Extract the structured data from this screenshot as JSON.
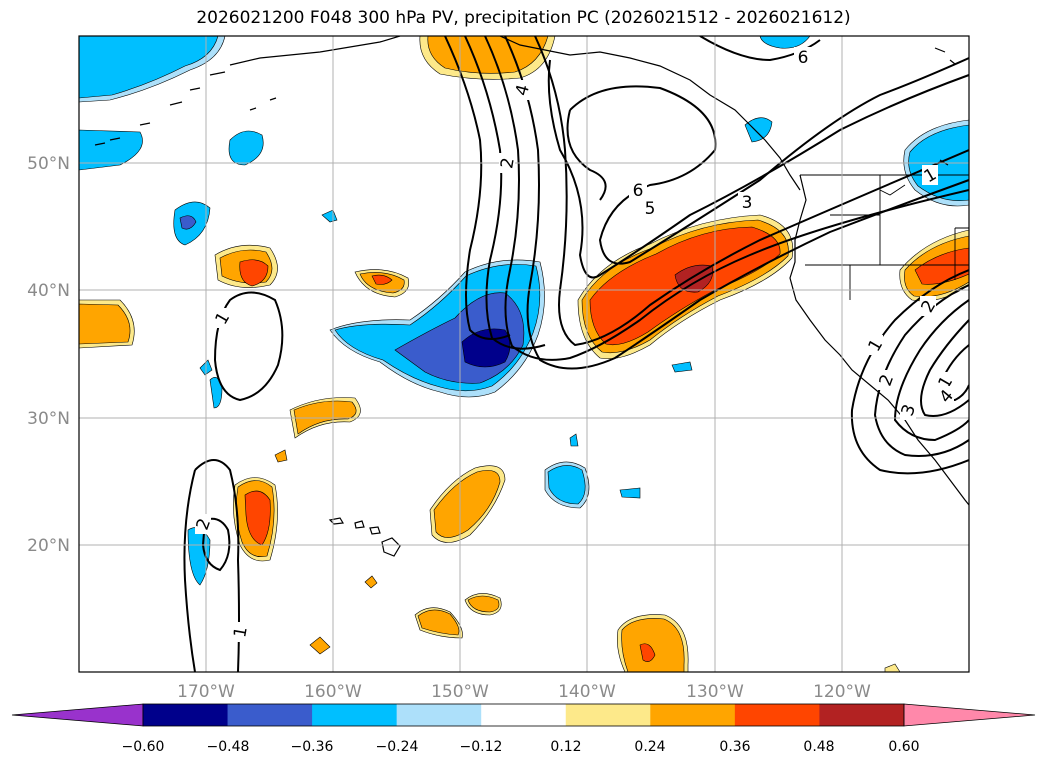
{
  "title": "2026021200 F048 300 hPa PV, precipitation PC (2026021512 - 2026021612)",
  "lon_labels": [
    "170°W",
    "160°W",
    "150°W",
    "140°W",
    "130°W",
    "120°W"
  ],
  "lat_labels": [
    "50°N",
    "40°N",
    "30°N",
    "20°N"
  ],
  "colorbar": {
    "ticks": [
      "−0.60",
      "−0.48",
      "−0.36",
      "−0.24",
      "−0.12",
      "0.12",
      "0.24",
      "0.36",
      "0.48",
      "0.60"
    ],
    "colors": [
      "#9932cc",
      "#00008b",
      "#3a5ccc",
      "#00bfff",
      "#ade0fa",
      "#ffffff",
      "#fde98a",
      "#ffa500",
      "#ff4500",
      "#b22222",
      "#ff88aa"
    ]
  },
  "contour_labels": [
    "6",
    "4",
    "2",
    "6",
    "5",
    "3",
    "1",
    "1",
    "2",
    "1",
    "1",
    "2",
    "3",
    "4",
    "2",
    "1"
  ]
}
